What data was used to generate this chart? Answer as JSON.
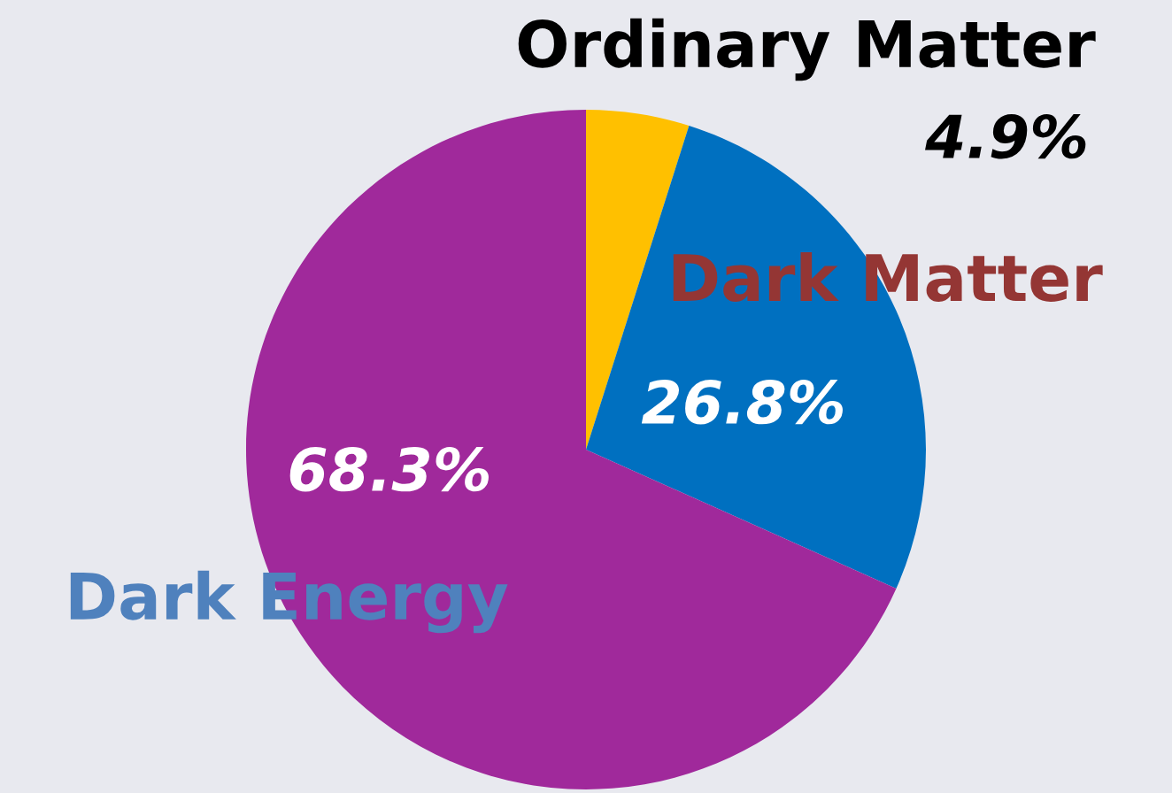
{
  "chart_data": {
    "type": "pie",
    "categories": [
      "Ordinary Matter",
      "Dark Matter",
      "Dark Energy"
    ],
    "values": [
      4.9,
      26.8,
      68.3
    ],
    "colors": [
      "#ffc000",
      "#0070c0",
      "#a0299b"
    ],
    "value_labels": [
      "4.9%",
      "26.8%",
      "68.3%"
    ]
  }
}
